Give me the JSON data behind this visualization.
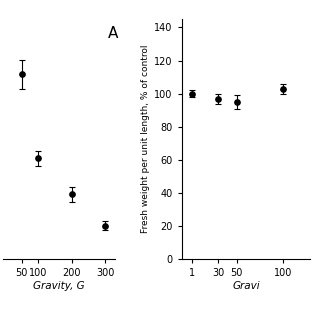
{
  "panel_A": {
    "x": [
      50,
      100,
      200,
      300
    ],
    "y": [
      107,
      72,
      57,
      44
    ],
    "yerr": [
      6,
      3,
      3,
      2
    ],
    "xlim": [
      -5,
      330
    ],
    "ylim": [
      30,
      130
    ],
    "xticks": [
      50,
      100,
      200,
      300
    ],
    "xticklabels": [
      "50",
      "100",
      "200",
      "300"
    ],
    "xlabel": "Gravity, G",
    "panel_label": "A"
  },
  "panel_B": {
    "x": [
      1,
      30,
      50,
      100
    ],
    "y": [
      100,
      97,
      95,
      103
    ],
    "yerr": [
      2,
      3,
      4,
      3
    ],
    "xlim": [
      -10,
      130
    ],
    "ylim": [
      0,
      145
    ],
    "xticks": [
      1,
      30,
      50,
      100
    ],
    "xticklabels": [
      "1",
      "30",
      "50",
      "100"
    ],
    "yticks": [
      0,
      20,
      40,
      60,
      80,
      100,
      120,
      140
    ],
    "yticklabels": [
      "0",
      "20",
      "40",
      "60",
      "80",
      "100",
      "120",
      "140"
    ],
    "ylabel": "Fresh weight per unit length, % of control",
    "xlabel": "Gravi"
  },
  "bg_color": "#ffffff",
  "line_color": "#000000",
  "marker": "o",
  "markersize": 4,
  "linewidth": 1.2,
  "capsize": 2,
  "elinewidth": 0.8
}
